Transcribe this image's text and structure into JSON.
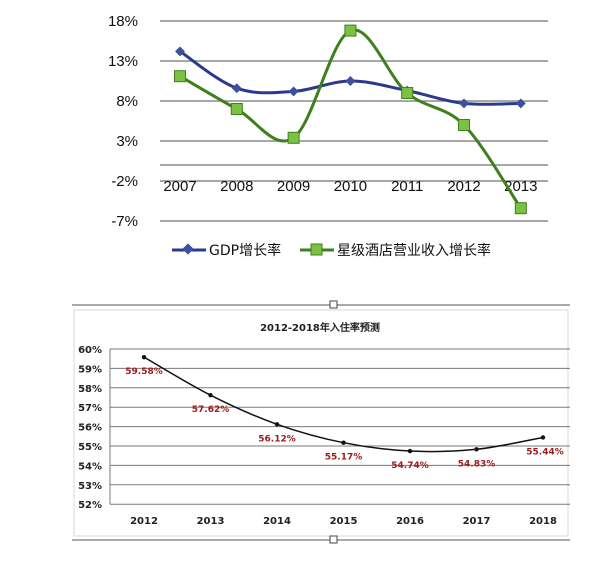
{
  "chart_data": [
    {
      "type": "line",
      "title": "",
      "categories": [
        "2007",
        "2008",
        "2009",
        "2010",
        "2011",
        "2012",
        "2013"
      ],
      "ylim": [
        -7,
        18
      ],
      "yticks": [
        "18%",
        "13%",
        "8%",
        "3%",
        "-2%",
        "-7%"
      ],
      "ytick_values": [
        18,
        13,
        8,
        3,
        -2,
        -7
      ],
      "grid": true,
      "legend": "bottom",
      "smooth": true,
      "series": [
        {
          "name": "GDP增长率",
          "values": [
            14.2,
            9.6,
            9.2,
            10.5,
            9.3,
            7.7,
            7.7
          ],
          "color": "#2b3a8c",
          "marker": "diamond"
        },
        {
          "name": "星级酒店营业收入增长率",
          "values": [
            11.1,
            7.0,
            3.4,
            16.8,
            9.0,
            5.0,
            -5.4
          ],
          "color": "#3f7f1f",
          "marker": "square",
          "marker_fill": "#7cc242"
        }
      ]
    },
    {
      "type": "line",
      "title": "2012-2018年入住率预测",
      "categories": [
        "2012",
        "2013",
        "2014",
        "2015",
        "2016",
        "2017",
        "2018"
      ],
      "ylim": [
        52,
        60
      ],
      "yticks": [
        "60%",
        "59%",
        "58%",
        "57%",
        "56%",
        "55%",
        "54%",
        "53%",
        "52%"
      ],
      "ytick_values": [
        60,
        59,
        58,
        57,
        56,
        55,
        54,
        53,
        52
      ],
      "grid": true,
      "series": [
        {
          "values": [
            59.58,
            57.62,
            56.12,
            55.17,
            54.74,
            54.83,
            55.44
          ],
          "labels": [
            "59.58%",
            "57.62%",
            "56.12%",
            "55.17%",
            "54.74%",
            "54.83%",
            "55.44%"
          ],
          "color": "#111111",
          "label_color": "#9b1b1b"
        }
      ]
    }
  ]
}
